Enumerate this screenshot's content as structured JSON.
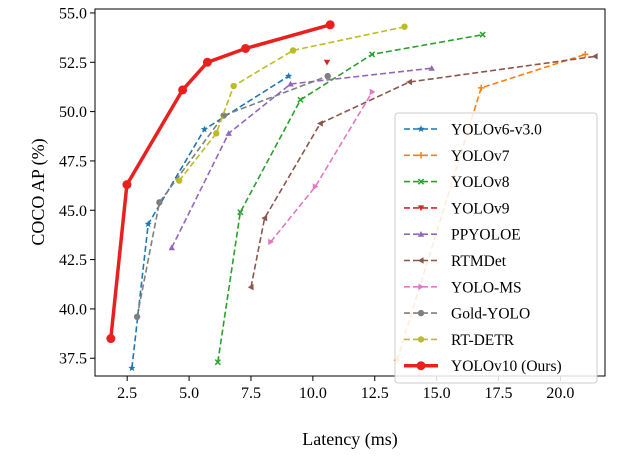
{
  "chart_data": {
    "type": "line",
    "xlabel": "Latency (ms)",
    "ylabel": "COCO AP (%)",
    "xlim": [
      1.2,
      21.8
    ],
    "ylim": [
      36.6,
      55.2
    ],
    "xticks": [
      2.5,
      5.0,
      7.5,
      10.0,
      12.5,
      15.0,
      17.5,
      20.0
    ],
    "yticks": [
      37.5,
      40.0,
      42.5,
      45.0,
      47.5,
      50.0,
      52.5,
      55.0
    ],
    "xtick_labels": [
      "2.5",
      "5.0",
      "7.5",
      "10.0",
      "12.5",
      "15.0",
      "17.5",
      "20.0"
    ],
    "ytick_labels": [
      "37.5",
      "40.0",
      "42.5",
      "45.0",
      "47.5",
      "50.0",
      "52.5",
      "55.0"
    ],
    "legend_position": "lower right",
    "grid": false,
    "series": [
      {
        "name": "YOLOv6-v3.0",
        "color": "#1f77b4",
        "marker": "star",
        "style": "dashed",
        "x": [
          2.69,
          3.35,
          5.62,
          9.02
        ],
        "y": [
          37.0,
          44.3,
          49.1,
          51.8
        ]
      },
      {
        "name": "YOLOv7",
        "color": "#ff7f0e",
        "marker": "plus",
        "style": "dashed",
        "x": [
          13.4,
          16.8,
          21.0
        ],
        "y": [
          37.4,
          51.2,
          52.9
        ]
      },
      {
        "name": "YOLOv8",
        "color": "#2ca02c",
        "marker": "x",
        "style": "dashed",
        "x": [
          6.16,
          7.07,
          9.5,
          12.39,
          16.86
        ],
        "y": [
          37.3,
          44.9,
          50.6,
          52.9,
          53.9
        ]
      },
      {
        "name": "YOLOv9",
        "color": "#d62728",
        "marker": "triangle-down",
        "style": "dashed",
        "x": [
          10.57
        ],
        "y": [
          52.5
        ]
      },
      {
        "name": "PPYOLOE",
        "color": "#9467bd",
        "marker": "triangle-up",
        "style": "dashed",
        "x": [
          4.3,
          6.6,
          9.1,
          14.8
        ],
        "y": [
          43.1,
          48.9,
          51.4,
          52.2
        ]
      },
      {
        "name": "RTMDet",
        "color": "#8c564b",
        "marker": "triangle-left",
        "style": "dashed",
        "x": [
          7.5,
          8.05,
          10.3,
          13.9,
          21.4
        ],
        "y": [
          41.1,
          44.6,
          49.4,
          51.5,
          52.8
        ]
      },
      {
        "name": "YOLO-MS",
        "color": "#e377c2",
        "marker": "triangle-right",
        "style": "dashed",
        "x": [
          8.3,
          10.1,
          12.4
        ],
        "y": [
          43.4,
          46.2,
          51.0
        ]
      },
      {
        "name": "Gold-YOLO",
        "color": "#7f7f7f",
        "marker": "circle",
        "style": "dashed",
        "x": [
          2.9,
          3.8,
          6.4,
          10.6
        ],
        "y": [
          39.6,
          45.4,
          49.8,
          51.8
        ]
      },
      {
        "name": "RT-DETR",
        "color": "#bcbd22",
        "marker": "circle",
        "style": "dashed",
        "x": [
          4.6,
          6.1,
          6.8,
          9.2,
          13.7
        ],
        "y": [
          46.5,
          48.9,
          51.3,
          53.1,
          54.3
        ]
      },
      {
        "name": "YOLOv10 (Ours)",
        "color": "#e8211f",
        "marker": "circle",
        "style": "solid",
        "x": [
          1.84,
          2.49,
          4.74,
          5.74,
          7.28,
          10.7
        ],
        "y": [
          38.5,
          46.3,
          51.1,
          52.5,
          53.2,
          54.4
        ]
      }
    ]
  }
}
